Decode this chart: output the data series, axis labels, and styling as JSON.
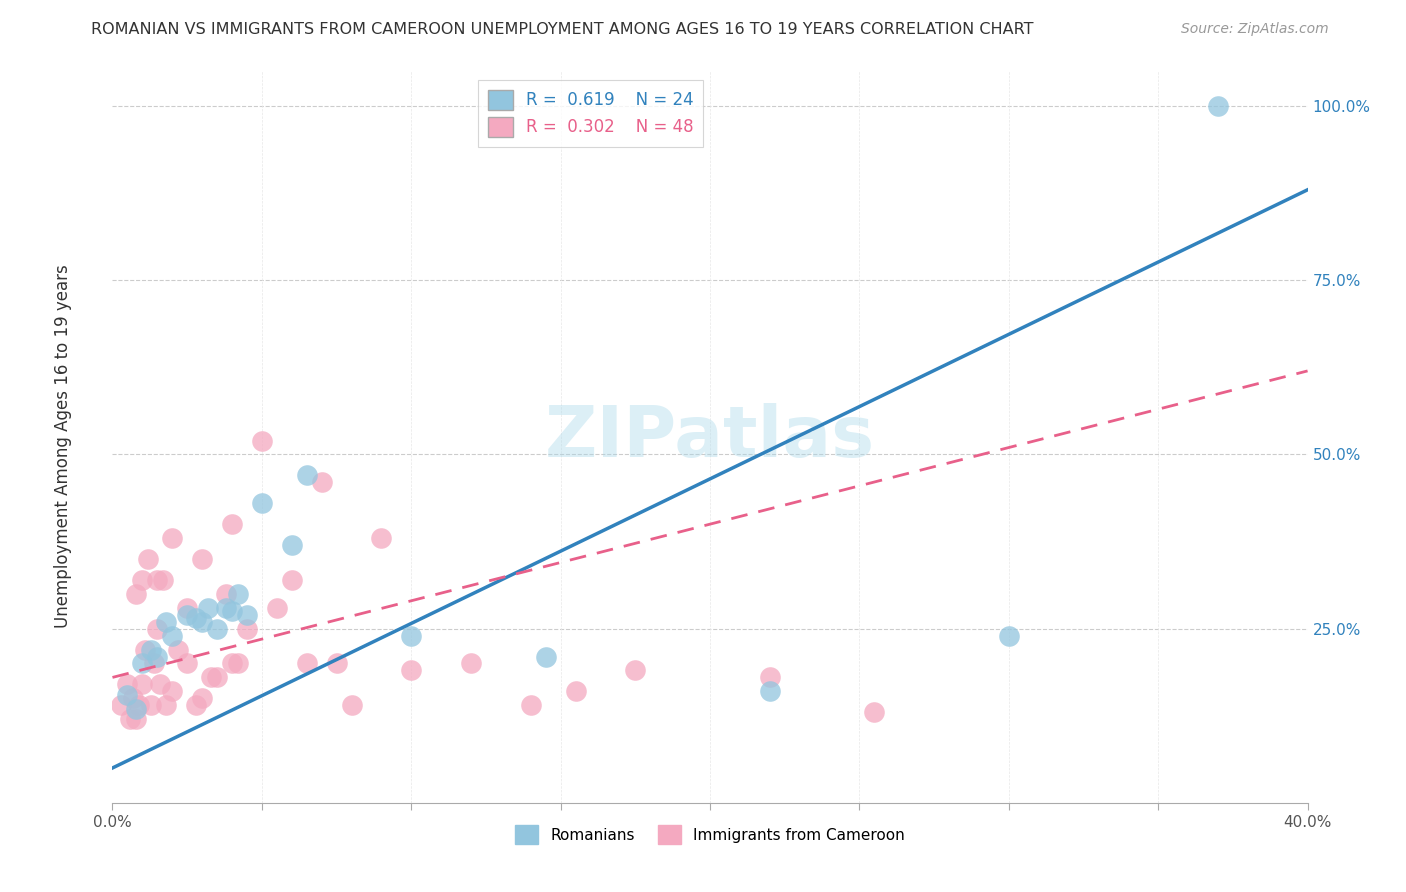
{
  "title": "ROMANIAN VS IMMIGRANTS FROM CAMEROON UNEMPLOYMENT AMONG AGES 16 TO 19 YEARS CORRELATION CHART",
  "source": "Source: ZipAtlas.com",
  "ylabel": "Unemployment Among Ages 16 to 19 years",
  "xlim": [
    0.0,
    0.4
  ],
  "ylim": [
    0.0,
    1.05
  ],
  "xticks": [
    0.0,
    0.05,
    0.1,
    0.15,
    0.2,
    0.25,
    0.3,
    0.35,
    0.4
  ],
  "yticks": [
    0.0,
    0.25,
    0.5,
    0.75,
    1.0
  ],
  "legend_r1": "R =  0.619",
  "legend_n1": "N = 24",
  "legend_r2": "R =  0.302",
  "legend_n2": "N = 48",
  "blue_color": "#92c5de",
  "pink_color": "#f4a9c0",
  "blue_line_color": "#3182bd",
  "pink_line_color": "#e8608a",
  "watermark_text": "ZIPatlas",
  "blue_line_x": [
    0.0,
    0.4
  ],
  "blue_line_y": [
    0.05,
    0.88
  ],
  "pink_line_x": [
    0.0,
    0.4
  ],
  "pink_line_y": [
    0.18,
    0.62
  ],
  "blue_points_x": [
    0.005,
    0.008,
    0.01,
    0.013,
    0.015,
    0.018,
    0.02,
    0.025,
    0.028,
    0.03,
    0.032,
    0.035,
    0.038,
    0.04,
    0.042,
    0.045,
    0.05,
    0.06,
    0.065,
    0.1,
    0.145,
    0.22,
    0.3,
    0.37
  ],
  "blue_points_y": [
    0.155,
    0.135,
    0.2,
    0.22,
    0.21,
    0.26,
    0.24,
    0.27,
    0.265,
    0.26,
    0.28,
    0.25,
    0.28,
    0.275,
    0.3,
    0.27,
    0.43,
    0.37,
    0.47,
    0.24,
    0.21,
    0.16,
    0.24,
    1.0
  ],
  "pink_points_x": [
    0.003,
    0.005,
    0.006,
    0.007,
    0.008,
    0.008,
    0.009,
    0.01,
    0.01,
    0.011,
    0.012,
    0.013,
    0.014,
    0.015,
    0.015,
    0.016,
    0.017,
    0.018,
    0.02,
    0.02,
    0.022,
    0.025,
    0.025,
    0.028,
    0.03,
    0.03,
    0.033,
    0.035,
    0.038,
    0.04,
    0.04,
    0.042,
    0.045,
    0.05,
    0.055,
    0.06,
    0.065,
    0.07,
    0.075,
    0.08,
    0.09,
    0.1,
    0.12,
    0.14,
    0.155,
    0.175,
    0.22,
    0.255
  ],
  "pink_points_y": [
    0.14,
    0.17,
    0.12,
    0.15,
    0.12,
    0.3,
    0.14,
    0.17,
    0.32,
    0.22,
    0.35,
    0.14,
    0.2,
    0.25,
    0.32,
    0.17,
    0.32,
    0.14,
    0.16,
    0.38,
    0.22,
    0.2,
    0.28,
    0.14,
    0.15,
    0.35,
    0.18,
    0.18,
    0.3,
    0.2,
    0.4,
    0.2,
    0.25,
    0.52,
    0.28,
    0.32,
    0.2,
    0.46,
    0.2,
    0.14,
    0.38,
    0.19,
    0.2,
    0.14,
    0.16,
    0.19,
    0.18,
    0.13
  ]
}
